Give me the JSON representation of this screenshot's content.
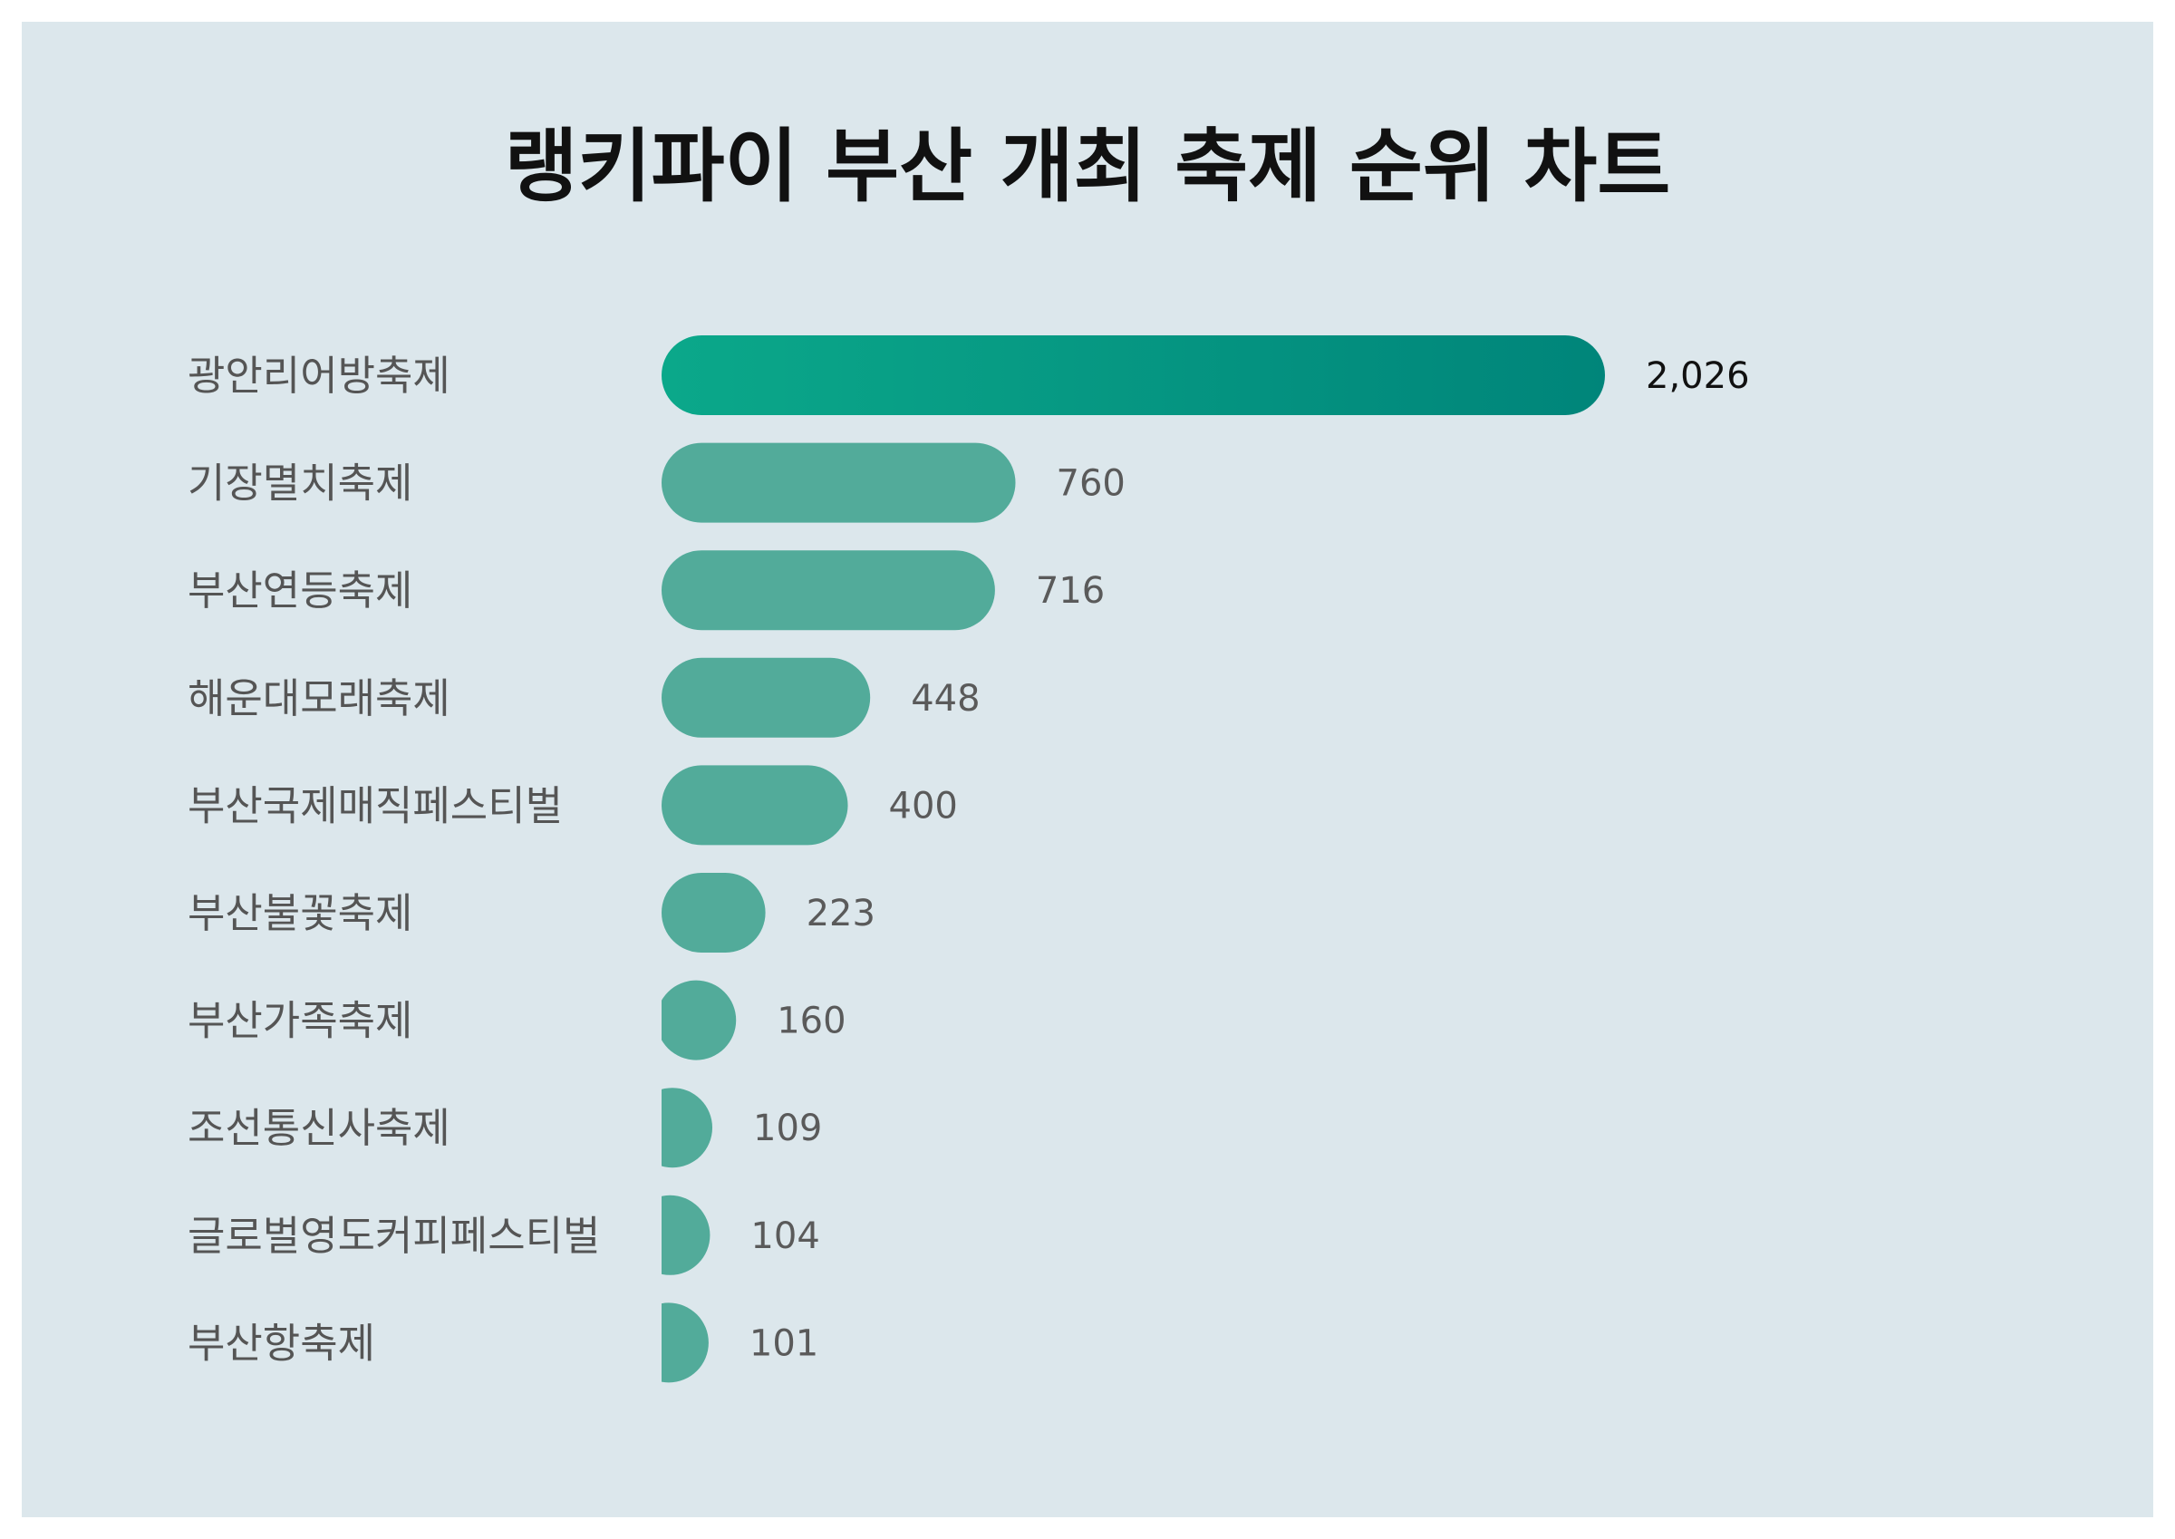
{
  "chart_data": {
    "type": "bar",
    "orientation": "horizontal",
    "title": "랭키파이 부산 개최 축제 순위 차트",
    "categories": [
      "광안리어방축제",
      "기장멸치축제",
      "부산연등축제",
      "해운대모래축제",
      "부산국제매직페스티벌",
      "부산불꽃축제",
      "부산가족축제",
      "조선통신사축제",
      "글로벌영도커피페스티벌",
      "부산항축제"
    ],
    "values": [
      2026,
      760,
      716,
      448,
      400,
      223,
      160,
      109,
      104,
      101
    ],
    "value_labels": [
      "2,026",
      "760",
      "716",
      "448",
      "400",
      "223",
      "160",
      "109",
      "104",
      "101"
    ],
    "xlabel": "",
    "ylabel": "",
    "grid": false,
    "legend": "none"
  },
  "colors": {
    "background": "#dce7ec",
    "bar": "#52ab9a",
    "top_bar_gradient_start": "#0ba88a",
    "top_bar_gradient_end": "#00857a"
  }
}
